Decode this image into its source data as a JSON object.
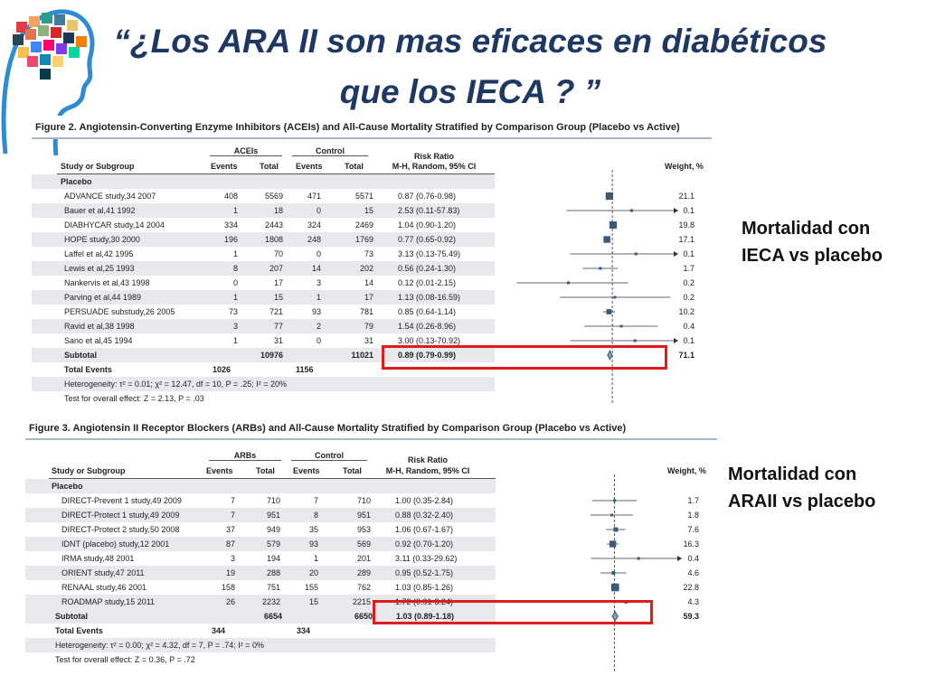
{
  "slide": {
    "title_line1": "“¿Los ARA II son mas eficaces en diabéticos",
    "title_line2": "que los IECA ? ”"
  },
  "colors": {
    "title": "#1f3763",
    "highlight": "#e01b1b",
    "marker": "#3b5a78",
    "diamond": "#7f9bb5"
  },
  "logo": {
    "icon": "head-with-pills-logo"
  },
  "fig1": {
    "caption": "Figure 2. Angiotensin-Converting Enzyme Inhibitors (ACEIs) and All-Cause Mortality Stratified by Comparison Group (Placebo vs Active)",
    "group_treat": "ACEIs",
    "group_ctrl": "Control",
    "col_study": "Study or Subgroup",
    "col_events": "Events",
    "col_total": "Total",
    "col_rr_1": "Risk Ratio",
    "col_rr_2": "M-H, Random, 95% CI",
    "col_weight": "Weight, %",
    "section": "Placebo",
    "rows": [
      {
        "study": "ADVANCE study,34 2007",
        "e1": "408",
        "t1": "5569",
        "e2": "471",
        "t2": "5571",
        "rr_text": "0.87 (0.76-0.98)",
        "weight": "21.1"
      },
      {
        "study": "Bauer et al,41 1992",
        "e1": "1",
        "t1": "18",
        "e2": "0",
        "t2": "15",
        "rr_text": "2.53 (0.11-57.83)",
        "weight": "0.1"
      },
      {
        "study": "DIABHYCAR study,14 2004",
        "e1": "334",
        "t1": "2443",
        "e2": "324",
        "t2": "2469",
        "rr_text": "1.04 (0.90-1.20)",
        "weight": "19.8"
      },
      {
        "study": "HOPE study,30 2000",
        "e1": "196",
        "t1": "1808",
        "e2": "248",
        "t2": "1769",
        "rr_text": "0.77 (0.65-0.92)",
        "weight": "17.1"
      },
      {
        "study": "Laffel et al,42 1995",
        "e1": "1",
        "t1": "70",
        "e2": "0",
        "t2": "73",
        "rr_text": "3.13 (0.13-75.49)",
        "weight": "0.1"
      },
      {
        "study": "Lewis et al,25 1993",
        "e1": "8",
        "t1": "207",
        "e2": "14",
        "t2": "202",
        "rr_text": "0.56 (0.24-1.30)",
        "weight": "1.7"
      },
      {
        "study": "Nankervis et al,43 1998",
        "e1": "0",
        "t1": "17",
        "e2": "3",
        "t2": "14",
        "rr_text": "0.12 (0.01-2.15)",
        "weight": "0.2"
      },
      {
        "study": "Parving et al,44 1989",
        "e1": "1",
        "t1": "15",
        "e2": "1",
        "t2": "17",
        "rr_text": "1.13 (0.08-16.59)",
        "weight": "0.2"
      },
      {
        "study": "PERSUADE substudy,26 2005",
        "e1": "73",
        "t1": "721",
        "e2": "93",
        "t2": "781",
        "rr_text": "0.85 (0.64-1.14)",
        "weight": "10.2"
      },
      {
        "study": "Ravid et al,38 1998",
        "e1": "3",
        "t1": "77",
        "e2": "2",
        "t2": "79",
        "rr_text": "1.54 (0.26-8.96)",
        "weight": "0.4"
      },
      {
        "study": "Sano et al,45 1994",
        "e1": "1",
        "t1": "31",
        "e2": "0",
        "t2": "31",
        "rr_text": "3.00 (0.13-70.92)",
        "weight": "0.1"
      }
    ],
    "subtotal": {
      "label": "Subtotal",
      "t1": "10976",
      "t2": "11021",
      "rr_text": "0.89 (0.79-0.99)",
      "weight": "71.1"
    },
    "total_events": {
      "label": "Total Events",
      "e1": "1026",
      "e2": "1156"
    },
    "heterogeneity": "Heterogeneity: τ² = 0.01; χ² = 12.47, df = 10, P = .25; I² = 20%",
    "overall": "Test for overall effect: Z = 2.13, P = .03",
    "side_label_1": "Mortalidad con",
    "side_label_2": "IECA vs placebo"
  },
  "fig2": {
    "caption": "Figure 3. Angiotensin II Receptor Blockers (ARBs) and All-Cause Mortality Stratified by Comparison Group (Placebo vs Active)",
    "group_treat": "ARBs",
    "group_ctrl": "Control",
    "col_study": "Study or Subgroup",
    "col_events": "Events",
    "col_total": "Total",
    "col_rr_1": "Risk Ratio",
    "col_rr_2": "M-H, Random, 95% CI",
    "col_weight": "Weight, %",
    "section": "Placebo",
    "rows": [
      {
        "study": "DIRECT-Prevent 1 study,49 2009",
        "e1": "7",
        "t1": "710",
        "e2": "7",
        "t2": "710",
        "rr_text": "1.00 (0.35-2.84)",
        "weight": "1.7"
      },
      {
        "study": "DIRECT-Protect 1 study,49 2009",
        "e1": "7",
        "t1": "951",
        "e2": "8",
        "t2": "951",
        "rr_text": "0.88 (0.32-2.40)",
        "weight": "1.8"
      },
      {
        "study": "DIRECT-Protect 2 study,50 2008",
        "e1": "37",
        "t1": "949",
        "e2": "35",
        "t2": "953",
        "rr_text": "1.06 (0.67-1.67)",
        "weight": "7.6"
      },
      {
        "study": "IDNT (placebo) study,12 2001",
        "e1": "87",
        "t1": "579",
        "e2": "93",
        "t2": "569",
        "rr_text": "0.92 (0.70-1.20)",
        "weight": "16.3"
      },
      {
        "study": "IRMA study,48 2001",
        "e1": "3",
        "t1": "194",
        "e2": "1",
        "t2": "201",
        "rr_text": "3.11 (0.33-29.62)",
        "weight": "0.4"
      },
      {
        "study": "ORIENT study,47 2011",
        "e1": "19",
        "t1": "288",
        "e2": "20",
        "t2": "289",
        "rr_text": "0.95 (0.52-1.75)",
        "weight": "4.6"
      },
      {
        "study": "RENAAL study,46 2001",
        "e1": "158",
        "t1": "751",
        "e2": "155",
        "t2": "762",
        "rr_text": "1.03 (0.85-1.26)",
        "weight": "22.8"
      },
      {
        "study": "ROADMAP study,15 2011",
        "e1": "26",
        "t1": "2232",
        "e2": "15",
        "t2": "2215",
        "rr_text": "1.72 (0.91-3.24)",
        "weight": "4.3"
      }
    ],
    "subtotal": {
      "label": "Subtotal",
      "t1": "6654",
      "t2": "6650",
      "rr_text": "1.03 (0.89-1.18)",
      "weight": "59.3"
    },
    "total_events": {
      "label": "Total Events",
      "e1": "344",
      "e2": "334"
    },
    "heterogeneity": "Heterogeneity: τ² = 0.00; χ² = 4.32, df = 7, P = .74; I² = 0%",
    "overall": "Test for overall effect: Z = 0.36, P = .72",
    "side_label_1": "Mortalidad con",
    "side_label_2": "ARAII vs placebo"
  },
  "chart_data": [
    {
      "type": "forest",
      "scale": "log",
      "reference": 1,
      "series": [
        {
          "name": "Placebo",
          "points": [
            {
              "rr": 0.87,
              "lo": 0.76,
              "hi": 0.98,
              "w": 21.1
            },
            {
              "rr": 2.53,
              "lo": 0.11,
              "hi": 57.83,
              "w": 0.1
            },
            {
              "rr": 1.04,
              "lo": 0.9,
              "hi": 1.2,
              "w": 19.8
            },
            {
              "rr": 0.77,
              "lo": 0.65,
              "hi": 0.92,
              "w": 17.1
            },
            {
              "rr": 3.13,
              "lo": 0.13,
              "hi": 75.49,
              "w": 0.1
            },
            {
              "rr": 0.56,
              "lo": 0.24,
              "hi": 1.3,
              "w": 1.7
            },
            {
              "rr": 0.12,
              "lo": 0.01,
              "hi": 2.15,
              "w": 0.2
            },
            {
              "rr": 1.13,
              "lo": 0.08,
              "hi": 16.59,
              "w": 0.2
            },
            {
              "rr": 0.85,
              "lo": 0.64,
              "hi": 1.14,
              "w": 10.2
            },
            {
              "rr": 1.54,
              "lo": 0.26,
              "hi": 8.96,
              "w": 0.4
            },
            {
              "rr": 3.0,
              "lo": 0.13,
              "hi": 70.92,
              "w": 0.1
            }
          ],
          "subtotal": {
            "rr": 0.89,
            "lo": 0.79,
            "hi": 0.99
          }
        }
      ]
    },
    {
      "type": "forest",
      "scale": "log",
      "reference": 1,
      "series": [
        {
          "name": "Placebo",
          "points": [
            {
              "rr": 1.0,
              "lo": 0.35,
              "hi": 2.84,
              "w": 1.7
            },
            {
              "rr": 0.88,
              "lo": 0.32,
              "hi": 2.4,
              "w": 1.8
            },
            {
              "rr": 1.06,
              "lo": 0.67,
              "hi": 1.67,
              "w": 7.6
            },
            {
              "rr": 0.92,
              "lo": 0.7,
              "hi": 1.2,
              "w": 16.3
            },
            {
              "rr": 3.11,
              "lo": 0.33,
              "hi": 29.62,
              "w": 0.4
            },
            {
              "rr": 0.95,
              "lo": 0.52,
              "hi": 1.75,
              "w": 4.6
            },
            {
              "rr": 1.03,
              "lo": 0.85,
              "hi": 1.26,
              "w": 22.8
            },
            {
              "rr": 1.72,
              "lo": 0.91,
              "hi": 3.24,
              "w": 4.3
            }
          ],
          "subtotal": {
            "rr": 1.03,
            "lo": 0.89,
            "hi": 1.18
          }
        }
      ]
    }
  ]
}
